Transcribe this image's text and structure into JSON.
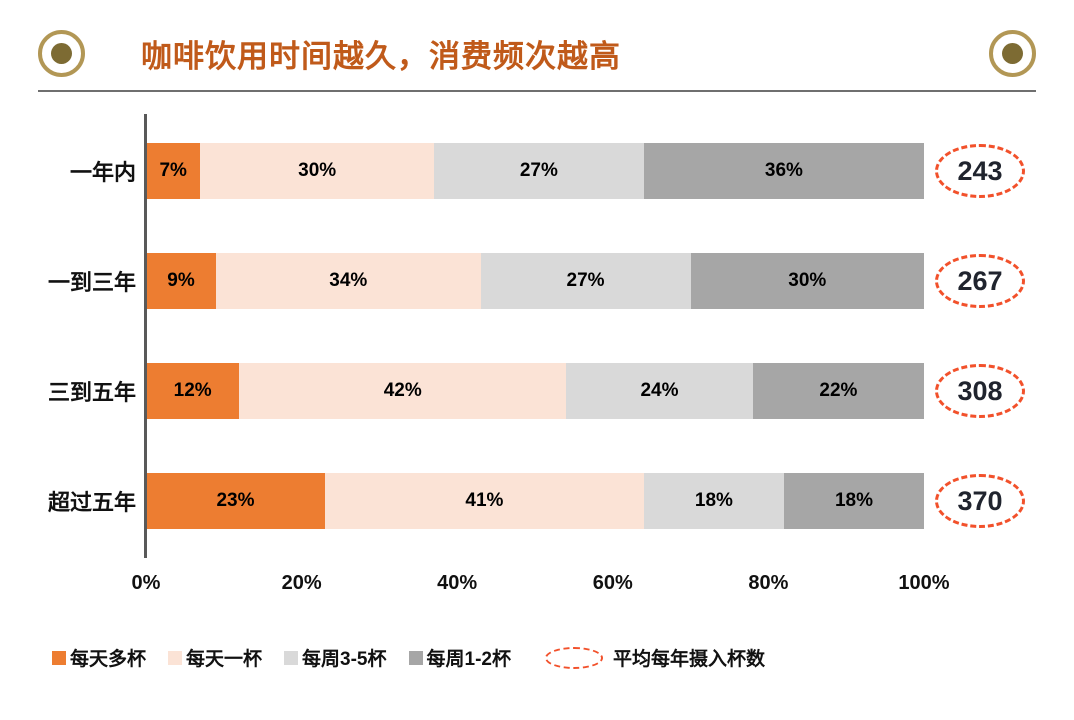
{
  "title": "咖啡饮用时间越久，消费频次越高",
  "colors": {
    "title": "#C05A1A",
    "axis": "#595959",
    "annotation": "#F2512B"
  },
  "chart_data": {
    "type": "bar",
    "orientation": "horizontal",
    "stacked": true,
    "categories": [
      "一年内",
      "一到三年",
      "三到五年",
      "超过五年"
    ],
    "series": [
      {
        "name": "每天多杯",
        "color": "#ED7D31",
        "values": [
          7,
          9,
          12,
          23
        ]
      },
      {
        "name": "每天一杯",
        "color": "#FBE3D6",
        "values": [
          30,
          34,
          42,
          41
        ]
      },
      {
        "name": "每周3-5杯",
        "color": "#D9D9D9",
        "values": [
          27,
          27,
          24,
          18
        ]
      },
      {
        "name": "每周1-2杯",
        "color": "#A6A6A6",
        "values": [
          36,
          30,
          22,
          18
        ]
      }
    ],
    "annotations": {
      "values": [
        243,
        267,
        308,
        370
      ],
      "label": "平均每年摄入杯数"
    },
    "x_ticks": [
      "0%",
      "20%",
      "40%",
      "60%",
      "80%",
      "100%"
    ],
    "xlim": [
      0,
      100
    ],
    "legend_position": "bottom",
    "grid": false
  }
}
